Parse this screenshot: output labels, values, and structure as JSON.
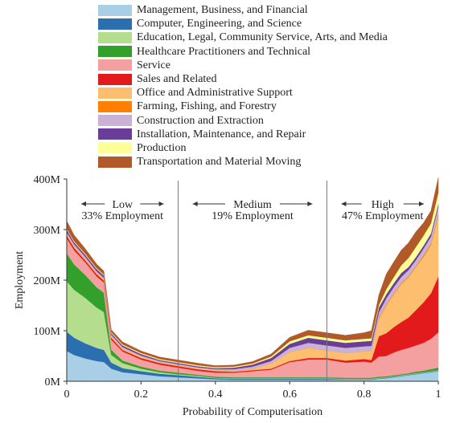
{
  "chart_data": {
    "type": "area",
    "stacked": true,
    "xlabel": "Probability of Computerisation",
    "ylabel": "Employment",
    "xlim": [
      0,
      1
    ],
    "ylim": [
      0,
      400
    ],
    "x_ticks": [
      0,
      0.2,
      0.4,
      0.6,
      0.8,
      1
    ],
    "x_tick_labels": [
      "0",
      "0.2",
      "0.4",
      "0.6",
      "0.8",
      "1"
    ],
    "y_ticks": [
      0,
      100,
      200,
      300,
      400
    ],
    "y_tick_labels": [
      "0M",
      "100M",
      "200M",
      "300M",
      "400M"
    ],
    "grid": false,
    "legend_position": "top",
    "x": [
      0,
      0.02,
      0.05,
      0.08,
      0.1,
      0.12,
      0.15,
      0.2,
      0.25,
      0.3,
      0.35,
      0.4,
      0.45,
      0.5,
      0.55,
      0.6,
      0.65,
      0.7,
      0.75,
      0.8,
      0.82,
      0.84,
      0.86,
      0.88,
      0.9,
      0.92,
      0.94,
      0.96,
      0.98,
      1
    ],
    "series": [
      {
        "name": "Management, Business, and Financial",
        "color": "#a9cfe6",
        "values": [
          60,
          52,
          45,
          40,
          38,
          25,
          18,
          14,
          10,
          8,
          6,
          4,
          3,
          3,
          3,
          3,
          3,
          3,
          3,
          3,
          3,
          5,
          6,
          8,
          10,
          12,
          14,
          16,
          18,
          20
        ]
      },
      {
        "name": "Computer, Engineering, and Science",
        "color": "#2b6fb1",
        "values": [
          38,
          34,
          30,
          26,
          24,
          12,
          8,
          6,
          5,
          4,
          3,
          2,
          2,
          2,
          2,
          2,
          2,
          2,
          1,
          1,
          1,
          1,
          1,
          1,
          1,
          1,
          1,
          1,
          1,
          1
        ]
      },
      {
        "name": "Education, Legal, Community Service, Arts, and Media",
        "color": "#b5dd8e",
        "values": [
          100,
          95,
          90,
          80,
          75,
          15,
          10,
          5,
          3,
          2,
          2,
          1,
          1,
          1,
          1,
          1,
          1,
          1,
          1,
          1,
          1,
          1,
          1,
          1,
          1,
          1,
          1,
          1,
          1,
          1
        ]
      },
      {
        "name": "Healthcare Practitioners and Technical",
        "color": "#33a02c",
        "values": [
          55,
          50,
          45,
          40,
          38,
          10,
          5,
          4,
          3,
          3,
          2,
          2,
          2,
          2,
          2,
          2,
          2,
          2,
          2,
          2,
          2,
          2,
          2,
          2,
          2,
          2,
          3,
          3,
          4,
          5
        ]
      },
      {
        "name": "Service",
        "color": "#f5a0a0",
        "values": [
          30,
          28,
          25,
          22,
          20,
          20,
          18,
          14,
          12,
          10,
          8,
          8,
          9,
          12,
          15,
          30,
          35,
          35,
          30,
          32,
          30,
          40,
          40,
          45,
          48,
          50,
          52,
          55,
          60,
          70
        ]
      },
      {
        "name": "Sales and Related",
        "color": "#e31a1c",
        "values": [
          5,
          5,
          4,
          4,
          4,
          4,
          3,
          3,
          3,
          3,
          3,
          3,
          2,
          2,
          2,
          2,
          3,
          3,
          4,
          5,
          5,
          40,
          45,
          50,
          55,
          60,
          70,
          80,
          90,
          110
        ]
      },
      {
        "name": "Office and Administrative Support",
        "color": "#fdbf6f",
        "values": [
          3,
          3,
          3,
          3,
          3,
          3,
          3,
          3,
          2,
          2,
          2,
          2,
          2,
          3,
          10,
          18,
          20,
          15,
          15,
          15,
          18,
          35,
          55,
          65,
          75,
          80,
          85,
          90,
          95,
          120
        ]
      },
      {
        "name": "Farming, Fishing, and Forestry",
        "color": "#ff7f00",
        "values": [
          0,
          0,
          0,
          0,
          0,
          0,
          0,
          0,
          0,
          0,
          0,
          0,
          0,
          0,
          0,
          0,
          0,
          0,
          0,
          0,
          0,
          2,
          2,
          2,
          2,
          2,
          2,
          3,
          3,
          3
        ]
      },
      {
        "name": "Construction and Extraction",
        "color": "#cab2d6",
        "values": [
          4,
          4,
          4,
          3,
          3,
          3,
          3,
          2,
          2,
          2,
          2,
          2,
          3,
          4,
          5,
          8,
          10,
          10,
          10,
          10,
          10,
          10,
          12,
          12,
          12,
          12,
          12,
          13,
          14,
          15
        ]
      },
      {
        "name": "Installation, Maintenance, and Repair",
        "color": "#6a3d9a",
        "values": [
          5,
          4,
          4,
          4,
          4,
          3,
          3,
          3,
          2,
          2,
          2,
          2,
          3,
          4,
          6,
          8,
          10,
          10,
          10,
          10,
          10,
          10,
          8,
          8,
          8,
          6,
          6,
          6,
          6,
          6
        ]
      },
      {
        "name": "Production",
        "color": "#ffff99",
        "values": [
          2,
          2,
          2,
          2,
          2,
          2,
          2,
          2,
          2,
          2,
          2,
          2,
          2,
          2,
          3,
          5,
          5,
          5,
          5,
          5,
          5,
          5,
          10,
          12,
          15,
          18,
          20,
          20,
          20,
          22
        ]
      },
      {
        "name": "Transportation and Material Moving",
        "color": "#b15928",
        "values": [
          15,
          12,
          10,
          8,
          7,
          5,
          5,
          4,
          4,
          4,
          4,
          3,
          3,
          4,
          5,
          8,
          10,
          10,
          10,
          12,
          15,
          20,
          30,
          30,
          30,
          30,
          30,
          25,
          25,
          30
        ]
      }
    ],
    "dividers": [
      0.3,
      0.7
    ],
    "regions": [
      {
        "name": "Low",
        "subtitle": "33% Employment",
        "x_start": 0,
        "x_end": 0.3
      },
      {
        "name": "Medium",
        "subtitle": "19% Employment",
        "x_start": 0.3,
        "x_end": 0.7
      },
      {
        "name": "High",
        "subtitle": "47% Employment",
        "x_start": 0.7,
        "x_end": 1
      }
    ]
  }
}
